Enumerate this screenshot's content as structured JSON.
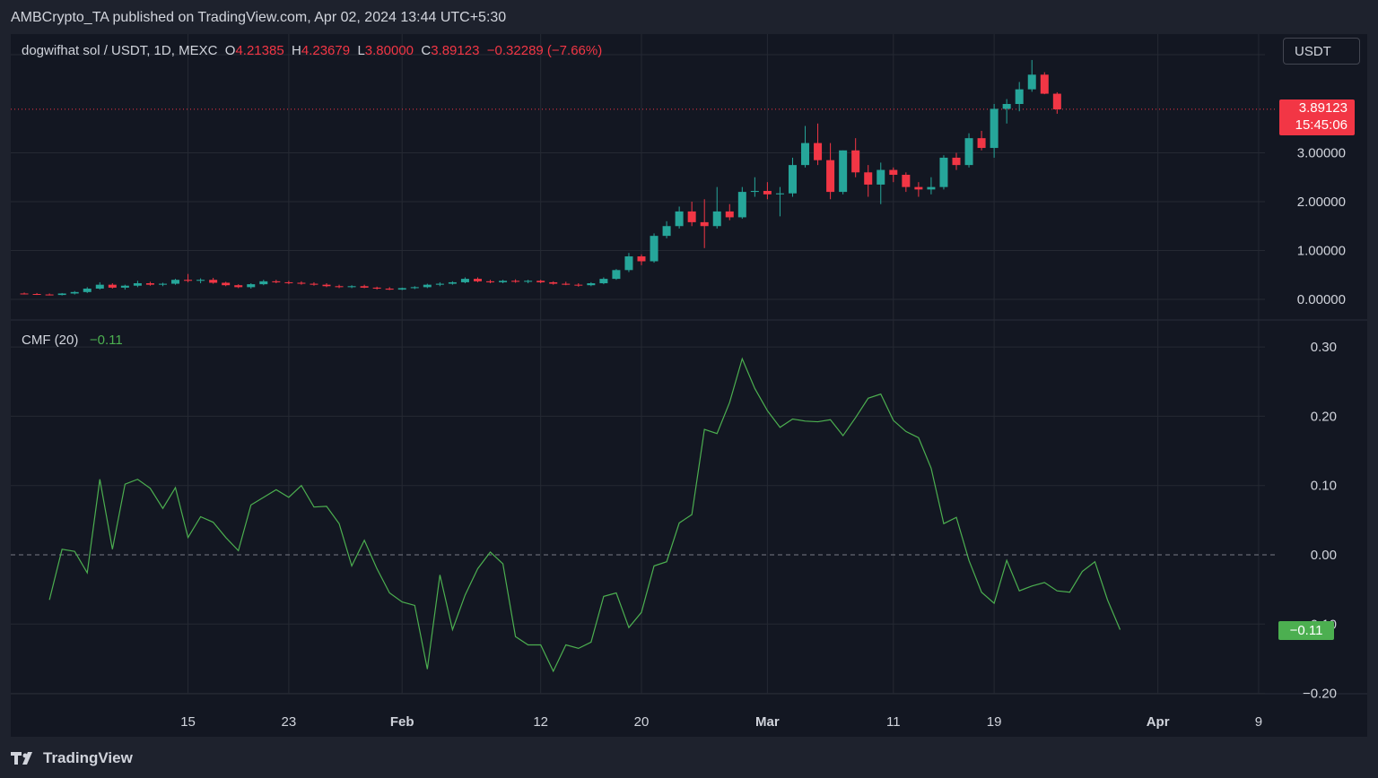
{
  "header": {
    "publisher": "AMBCrypto_TA published on TradingView.com, Apr 02, 2024 13:44 UTC+5:30"
  },
  "legend": {
    "symbol": "dogwifhat sol / USDT, 1D, MEXC",
    "o_label": "O",
    "o": "4.21385",
    "h_label": "H",
    "h": "4.23679",
    "l_label": "L",
    "l": "3.80000",
    "c_label": "C",
    "c": "3.89123",
    "change": "−0.32289 (−7.66%)"
  },
  "currency_button": "USDT",
  "price_badge": {
    "price": "3.89123",
    "countdown": "15:45:06"
  },
  "cmf": {
    "label": "CMF (20)",
    "value": "−0.11",
    "badge": "−0.11"
  },
  "footer": {
    "brand": "TradingView"
  },
  "colors": {
    "up": "#26a69a",
    "down": "#f23645",
    "cmf_line": "#4caf50",
    "background": "#131722"
  },
  "chart_data": [
    {
      "type": "candlestick",
      "title": "dogwifhat sol / USDT, 1D, MEXC",
      "y_ticks": [
        "0.00000",
        "1.00000",
        "2.00000",
        "3.00000"
      ],
      "ylim": [
        -0.15,
        4.95
      ],
      "last_price": 3.89123,
      "x_ticks": [
        {
          "label": "15",
          "day": 14
        },
        {
          "label": "23",
          "day": 22
        },
        {
          "label": "Feb",
          "day": 31
        },
        {
          "label": "12",
          "day": 42
        },
        {
          "label": "20",
          "day": 50
        },
        {
          "label": "Mar",
          "day": 60
        },
        {
          "label": "11",
          "day": 70
        },
        {
          "label": "19",
          "day": 78
        },
        {
          "label": "Apr",
          "day": 91
        },
        {
          "label": "9",
          "day": 99
        }
      ],
      "candles": [
        [
          0.12,
          0.14,
          0.1,
          0.11
        ],
        [
          0.11,
          0.13,
          0.09,
          0.1
        ],
        [
          0.1,
          0.12,
          0.08,
          0.09
        ],
        [
          0.09,
          0.13,
          0.08,
          0.12
        ],
        [
          0.12,
          0.17,
          0.1,
          0.15
        ],
        [
          0.15,
          0.25,
          0.13,
          0.22
        ],
        [
          0.22,
          0.35,
          0.2,
          0.3
        ],
        [
          0.3,
          0.33,
          0.22,
          0.24
        ],
        [
          0.24,
          0.3,
          0.2,
          0.28
        ],
        [
          0.28,
          0.38,
          0.25,
          0.33
        ],
        [
          0.33,
          0.36,
          0.28,
          0.3
        ],
        [
          0.3,
          0.34,
          0.27,
          0.32
        ],
        [
          0.32,
          0.42,
          0.3,
          0.4
        ],
        [
          0.4,
          0.52,
          0.35,
          0.38
        ],
        [
          0.38,
          0.43,
          0.33,
          0.4
        ],
        [
          0.4,
          0.44,
          0.32,
          0.34
        ],
        [
          0.34,
          0.36,
          0.27,
          0.29
        ],
        [
          0.29,
          0.31,
          0.23,
          0.25
        ],
        [
          0.25,
          0.33,
          0.22,
          0.31
        ],
        [
          0.31,
          0.4,
          0.29,
          0.37
        ],
        [
          0.37,
          0.4,
          0.33,
          0.35
        ],
        [
          0.35,
          0.38,
          0.31,
          0.34
        ],
        [
          0.34,
          0.37,
          0.3,
          0.32
        ],
        [
          0.32,
          0.35,
          0.28,
          0.3
        ],
        [
          0.3,
          0.33,
          0.25,
          0.27
        ],
        [
          0.27,
          0.3,
          0.23,
          0.25
        ],
        [
          0.25,
          0.29,
          0.23,
          0.27
        ],
        [
          0.27,
          0.3,
          0.23,
          0.24
        ],
        [
          0.24,
          0.26,
          0.2,
          0.22
        ],
        [
          0.22,
          0.25,
          0.19,
          0.2
        ],
        [
          0.2,
          0.24,
          0.19,
          0.23
        ],
        [
          0.23,
          0.27,
          0.21,
          0.25
        ],
        [
          0.25,
          0.32,
          0.23,
          0.3
        ],
        [
          0.3,
          0.35,
          0.27,
          0.32
        ],
        [
          0.32,
          0.37,
          0.3,
          0.35
        ],
        [
          0.35,
          0.45,
          0.33,
          0.42
        ],
        [
          0.42,
          0.45,
          0.35,
          0.37
        ],
        [
          0.37,
          0.4,
          0.33,
          0.35
        ],
        [
          0.35,
          0.4,
          0.33,
          0.38
        ],
        [
          0.38,
          0.41,
          0.34,
          0.36
        ],
        [
          0.36,
          0.4,
          0.33,
          0.38
        ],
        [
          0.38,
          0.4,
          0.33,
          0.35
        ],
        [
          0.35,
          0.37,
          0.3,
          0.32
        ],
        [
          0.32,
          0.36,
          0.29,
          0.3
        ],
        [
          0.3,
          0.33,
          0.26,
          0.29
        ],
        [
          0.29,
          0.35,
          0.27,
          0.33
        ],
        [
          0.33,
          0.45,
          0.31,
          0.42
        ],
        [
          0.42,
          0.62,
          0.4,
          0.6
        ],
        [
          0.6,
          0.95,
          0.56,
          0.88
        ],
        [
          0.88,
          0.92,
          0.7,
          0.78
        ],
        [
          0.78,
          1.35,
          0.75,
          1.3
        ],
        [
          1.3,
          1.6,
          1.25,
          1.5
        ],
        [
          1.5,
          1.9,
          1.45,
          1.8
        ],
        [
          1.8,
          2.0,
          1.5,
          1.58
        ],
        [
          1.58,
          2.05,
          1.05,
          1.5
        ],
        [
          1.5,
          2.3,
          1.45,
          1.8
        ],
        [
          1.8,
          1.95,
          1.62,
          1.68
        ],
        [
          1.68,
          2.3,
          1.65,
          2.2
        ],
        [
          2.2,
          2.5,
          2.1,
          2.22
        ],
        [
          2.22,
          2.4,
          2.05,
          2.15
        ],
        [
          2.15,
          2.3,
          1.7,
          2.17
        ],
        [
          2.17,
          2.9,
          2.1,
          2.75
        ],
        [
          2.75,
          3.55,
          2.7,
          3.2
        ],
        [
          3.2,
          3.6,
          2.75,
          2.85
        ],
        [
          2.85,
          3.2,
          2.05,
          2.2
        ],
        [
          2.2,
          3.05,
          2.15,
          3.05
        ],
        [
          3.05,
          3.3,
          2.5,
          2.6
        ],
        [
          2.6,
          2.75,
          2.1,
          2.35
        ],
        [
          2.35,
          2.8,
          1.95,
          2.65
        ],
        [
          2.65,
          2.7,
          2.4,
          2.55
        ],
        [
          2.55,
          2.6,
          2.2,
          2.3
        ],
        [
          2.3,
          2.4,
          2.1,
          2.25
        ],
        [
          2.25,
          2.5,
          2.15,
          2.3
        ],
        [
          2.3,
          2.95,
          2.25,
          2.9
        ],
        [
          2.9,
          3.0,
          2.65,
          2.75
        ],
        [
          2.75,
          3.4,
          2.7,
          3.3
        ],
        [
          3.3,
          3.45,
          3.05,
          3.1
        ],
        [
          3.1,
          4.0,
          2.9,
          3.9
        ],
        [
          3.9,
          4.1,
          3.6,
          4.0
        ],
        [
          4.0,
          4.45,
          3.85,
          4.3
        ],
        [
          4.3,
          4.9,
          4.25,
          4.6
        ],
        [
          4.6,
          4.65,
          4.2,
          4.21
        ],
        [
          4.21,
          4.24,
          3.8,
          3.89
        ]
      ]
    },
    {
      "type": "line",
      "title": "CMF (20)",
      "y_ticks": [
        "0.30",
        "0.20",
        "0.10",
        "0.00",
        "−0.10",
        "−0.20"
      ],
      "ylim": [
        -0.2,
        0.3
      ],
      "zero_line": 0.0,
      "last_value": -0.11,
      "values": [
        -0.065,
        0.008,
        0.005,
        -0.026,
        0.109,
        0.008,
        0.102,
        0.109,
        0.096,
        0.067,
        0.097,
        0.025,
        0.055,
        0.047,
        0.025,
        0.006,
        0.072,
        0.083,
        0.094,
        0.083,
        0.1,
        0.069,
        0.07,
        0.045,
        -0.016,
        0.021,
        -0.02,
        -0.055,
        -0.068,
        -0.073,
        -0.165,
        -0.029,
        -0.108,
        -0.058,
        -0.02,
        0.004,
        -0.013,
        -0.118,
        -0.13,
        -0.13,
        -0.168,
        -0.13,
        -0.135,
        -0.126,
        -0.06,
        -0.055,
        -0.105,
        -0.083,
        -0.016,
        -0.01,
        0.046,
        0.058,
        0.181,
        0.175,
        0.22,
        0.283,
        0.24,
        0.208,
        0.184,
        0.196,
        0.193,
        0.192,
        0.195,
        0.172,
        0.198,
        0.226,
        0.232,
        0.194,
        0.178,
        0.169,
        0.125,
        0.045,
        0.054,
        -0.008,
        -0.054,
        -0.07,
        -0.008,
        -0.052,
        -0.045,
        -0.04,
        -0.052,
        -0.054,
        -0.024,
        -0.01,
        -0.065,
        -0.108
      ]
    }
  ]
}
